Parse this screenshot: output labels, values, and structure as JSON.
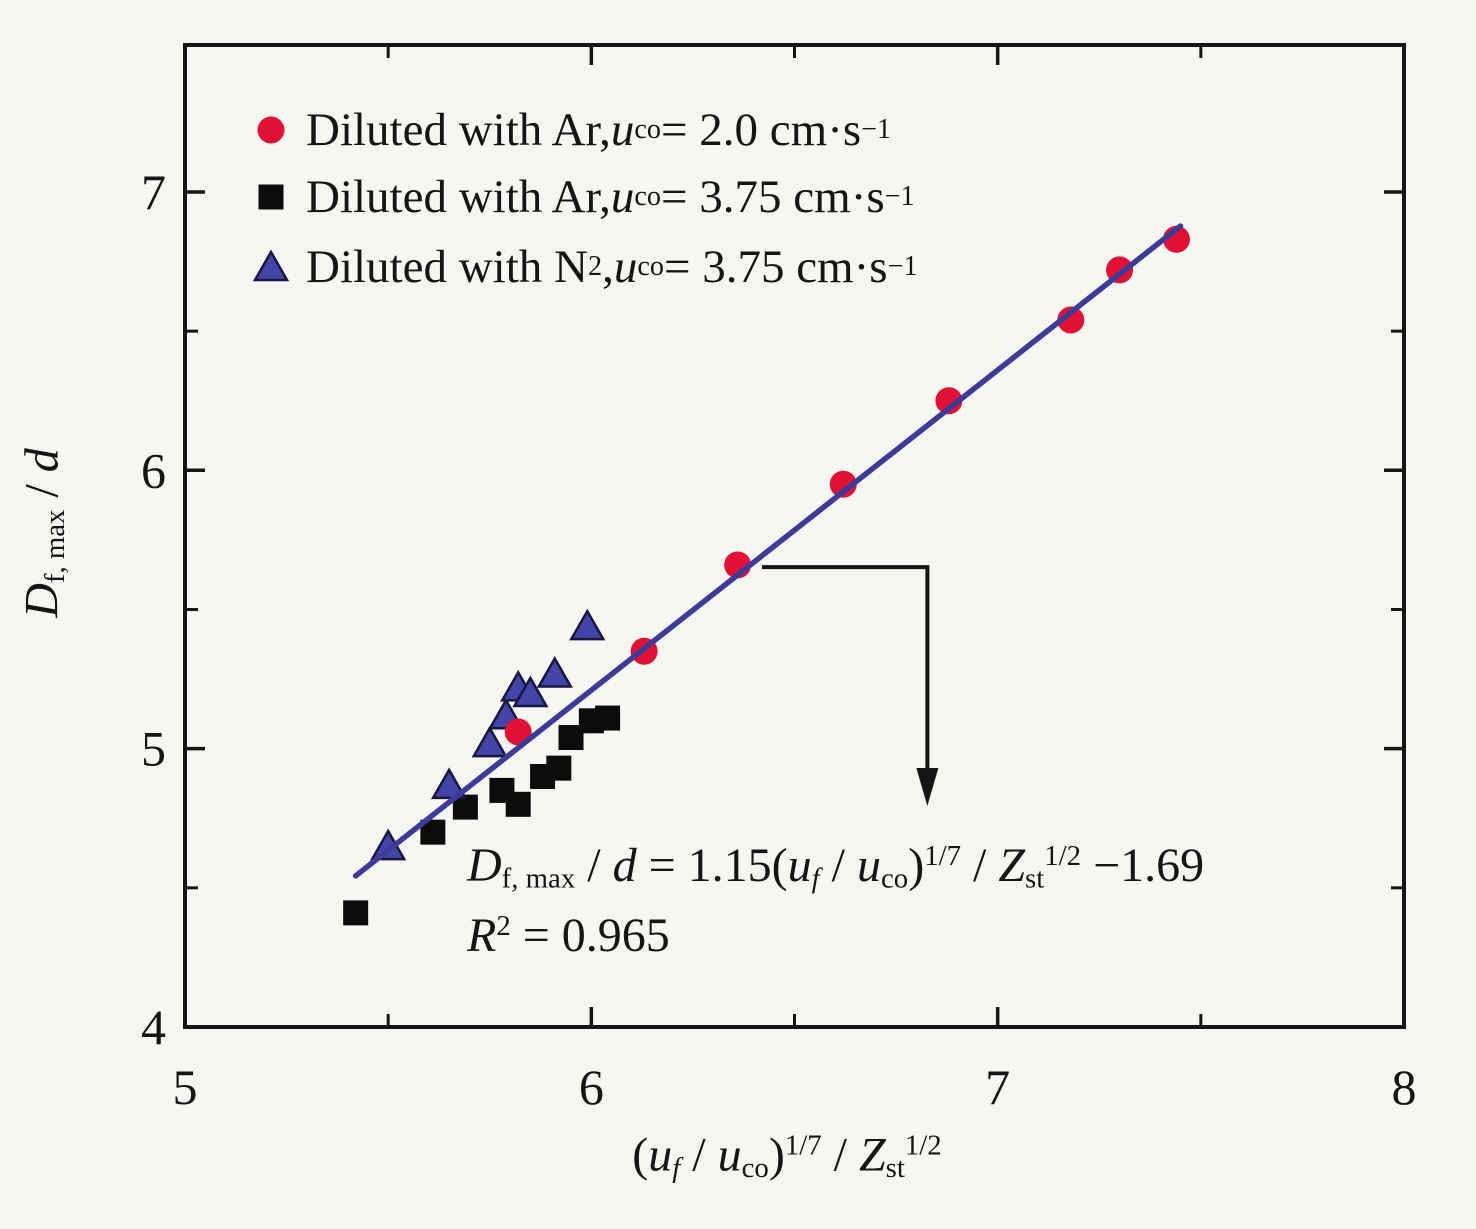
{
  "figure": {
    "background": "#f6f6f3",
    "axis_color": "#151515",
    "tick_label_color": "#151515"
  },
  "chart_data": {
    "type": "scatter",
    "title": "",
    "xlabel": "(u_f / u_co)^(1/7) / Z_st^(1/2)",
    "ylabel": "D_f,max / d",
    "xlim": [
      5,
      8
    ],
    "ylim": [
      4,
      7.528
    ],
    "grid": false,
    "legend_position": "upper-left-inside",
    "x_major_ticks": [
      5,
      6,
      7,
      8
    ],
    "x_minor_ticks": [
      5.5,
      6.5,
      7.5
    ],
    "y_major_ticks": [
      4,
      5,
      6,
      7
    ],
    "y_minor_ticks": [
      4.5,
      5.5,
      6.5
    ],
    "series": [
      {
        "name": "Diluted with Ar, u_co = 2.0 cm·s⁻¹",
        "marker": "circle",
        "color": "#e01134",
        "points": [
          [
            5.82,
            5.06
          ],
          [
            6.13,
            5.35
          ],
          [
            6.36,
            5.66
          ],
          [
            6.62,
            5.95
          ],
          [
            6.88,
            6.25
          ],
          [
            7.18,
            6.54
          ],
          [
            7.3,
            6.72
          ],
          [
            7.44,
            6.83
          ]
        ]
      },
      {
        "name": "Diluted with Ar, u_co = 3.75 cm·s⁻¹",
        "marker": "square",
        "color": "#0b0b0b",
        "points": [
          [
            5.42,
            4.41
          ],
          [
            5.61,
            4.7
          ],
          [
            5.69,
            4.79
          ],
          [
            5.78,
            4.85
          ],
          [
            5.82,
            4.8
          ],
          [
            5.88,
            4.9
          ],
          [
            5.92,
            4.93
          ],
          [
            5.95,
            5.04
          ],
          [
            6.0,
            5.1
          ],
          [
            6.04,
            5.11
          ]
        ]
      },
      {
        "name": "Diluted with N2, u_co = 3.75 cm·s⁻¹",
        "marker": "triangle",
        "color": "#4244a8",
        "edge_color": "#17173f",
        "points": [
          [
            5.5,
            4.65
          ],
          [
            5.65,
            4.87
          ],
          [
            5.75,
            5.02
          ],
          [
            5.79,
            5.12
          ],
          [
            5.82,
            5.22
          ],
          [
            5.85,
            5.2
          ],
          [
            5.91,
            5.27
          ],
          [
            5.99,
            5.44
          ]
        ]
      }
    ],
    "fit_line": {
      "equation": "D_f,max / d = 1.15 (u_f / u_co)^(1/7) / Z_st^(1/2) - 1.69",
      "slope": 1.15,
      "intercept": -1.69,
      "r_squared": 0.965,
      "x_start": 5.42,
      "x_end": 7.45,
      "color": "#3e3b98"
    },
    "annotation_arrow": {
      "start": [
        6.42,
        5.652
      ],
      "corner": [
        6.827,
        5.652
      ],
      "end": [
        6.827,
        4.794
      ],
      "color": "#151515"
    }
  },
  "legend": {
    "items": [
      {
        "marker": "circle",
        "segments": [
          {
            "t": "Diluted with Ar, "
          },
          {
            "t": "u",
            "s": "i"
          },
          {
            "t": "co",
            "s": "sub"
          },
          {
            "t": " = 2.0 cm·s"
          },
          {
            "t": "−1",
            "s": "sup"
          }
        ]
      },
      {
        "marker": "square",
        "segments": [
          {
            "t": "Diluted with Ar, "
          },
          {
            "t": "u",
            "s": "i"
          },
          {
            "t": "co",
            "s": "sub"
          },
          {
            "t": " = 3.75 cm·s"
          },
          {
            "t": "−1",
            "s": "sup"
          }
        ]
      },
      {
        "marker": "triangle",
        "segments": [
          {
            "t": "Diluted with N"
          },
          {
            "t": "2",
            "s": "sub"
          },
          {
            "t": " , "
          },
          {
            "t": "u",
            "s": "i"
          },
          {
            "t": "co",
            "s": "sub"
          },
          {
            "t": " = 3.75 cm·s"
          },
          {
            "t": "−1",
            "s": "sup"
          }
        ]
      }
    ]
  },
  "equation_annotation": {
    "line1": [
      {
        "t": "D",
        "s": "i"
      },
      {
        "t": "f, max",
        "s": "sub"
      },
      {
        "t": " / "
      },
      {
        "t": "d",
        "s": "i"
      },
      {
        "t": " = 1.15("
      },
      {
        "t": "u",
        "s": "i"
      },
      {
        "t": "f",
        "s": "subi"
      },
      {
        "t": " / "
      },
      {
        "t": "u",
        "s": "i"
      },
      {
        "t": "co",
        "s": "sub"
      },
      {
        "t": ")"
      },
      {
        "t": "1/7",
        "s": "sup"
      },
      {
        "t": " / "
      },
      {
        "t": "Z",
        "s": "i"
      },
      {
        "t": "st",
        "s": "sub"
      },
      {
        "t": "1/2",
        "s": "sup"
      },
      {
        "t": " −1.69"
      }
    ],
    "line2": [
      {
        "t": "R",
        "s": "i"
      },
      {
        "t": "2",
        "s": "sup"
      },
      {
        "t": " = 0.965"
      }
    ]
  },
  "axis_labels": {
    "x": [
      {
        "t": "("
      },
      {
        "t": "u",
        "s": "i"
      },
      {
        "t": "f",
        "s": "subi"
      },
      {
        "t": " / "
      },
      {
        "t": "u",
        "s": "i"
      },
      {
        "t": "co",
        "s": "sub"
      },
      {
        "t": ")"
      },
      {
        "t": "1/7",
        "s": "sup"
      },
      {
        "t": " / "
      },
      {
        "t": "Z",
        "s": "i"
      },
      {
        "t": "st",
        "s": "sub"
      },
      {
        "t": "1/2",
        "s": "sup"
      }
    ],
    "y": [
      {
        "t": "D",
        "s": "i"
      },
      {
        "t": "f, max",
        "s": "sub"
      },
      {
        "t": " / "
      },
      {
        "t": "d",
        "s": "i"
      }
    ]
  }
}
